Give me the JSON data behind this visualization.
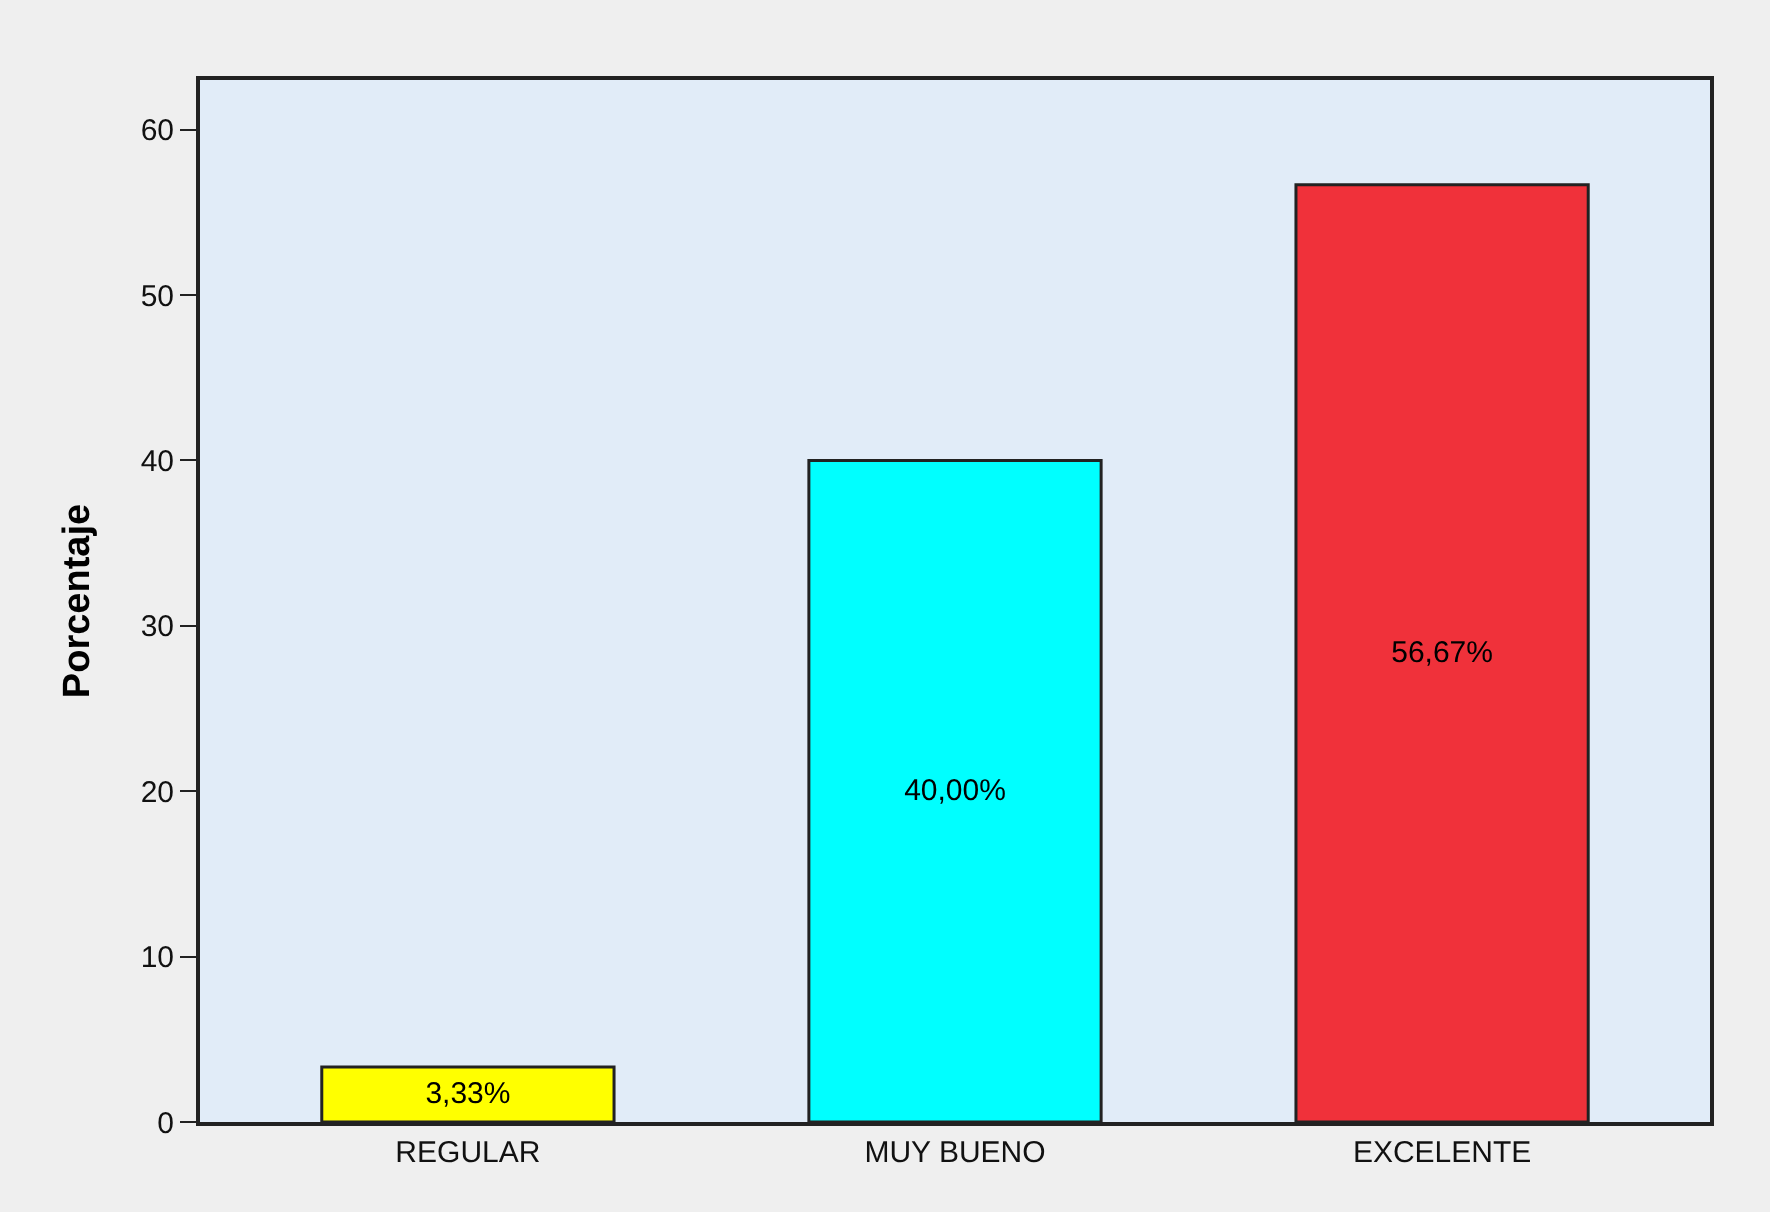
{
  "chart_data": {
    "type": "bar",
    "ylabel": "Porcentaje",
    "categories": [
      "REGULAR",
      "MUY BUENO",
      "EXCELENTE"
    ],
    "values": [
      3.33,
      40.0,
      56.67
    ],
    "value_labels": [
      "3,33%",
      "40,00%",
      "56,67%"
    ],
    "colors": [
      "#ffff00",
      "#00ffff",
      "#f0313a"
    ],
    "ylim": [
      0,
      63
    ],
    "yticks": [
      0,
      10,
      20,
      30,
      40,
      50,
      60
    ]
  }
}
